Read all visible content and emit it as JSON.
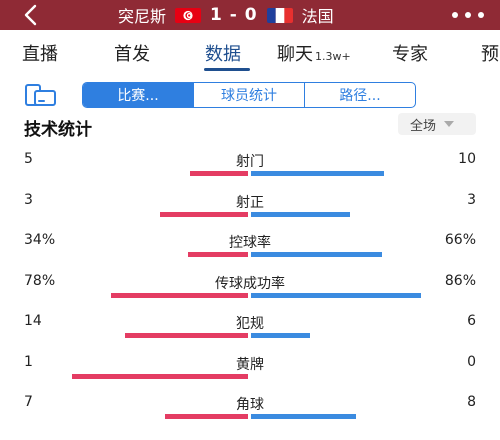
{
  "header": {
    "home_team": "突尼斯",
    "score": "1 - 0",
    "away_team": "法国",
    "home_flag": "tunisia-flag-icon",
    "away_flag": "france-flag-icon"
  },
  "tabs": [
    {
      "label": "直播"
    },
    {
      "label": "首发"
    },
    {
      "label": "数据"
    },
    {
      "label": "聊天",
      "badge": "1.3w+"
    },
    {
      "label": "专家"
    },
    {
      "label": "预"
    }
  ],
  "active_tab": "数据",
  "segments": [
    {
      "label": "比赛..."
    },
    {
      "label": "球员统计"
    },
    {
      "label": "路径..."
    }
  ],
  "section": {
    "title": "技术统计",
    "scope": "全场"
  },
  "colors": {
    "header_bg": "#8f2a35",
    "accent": "#2f7fe0",
    "home_bar": "#e43c63",
    "away_bar": "#3b8be0"
  },
  "stats": [
    {
      "label": "射门",
      "home": "5",
      "away": "10",
      "home_share": 0.33,
      "away_share": 0.67
    },
    {
      "label": "射正",
      "home": "3",
      "away": "3",
      "home_share": 0.5,
      "away_share": 0.5
    },
    {
      "label": "控球率",
      "home": "34%",
      "away": "66%",
      "home_share": 0.34,
      "away_share": 0.66
    },
    {
      "label": "传球成功率",
      "home": "78%",
      "away": "86%",
      "home_share": 0.78,
      "away_share": 0.86
    },
    {
      "label": "犯规",
      "home": "14",
      "away": "6",
      "home_share": 0.7,
      "away_share": 0.3
    },
    {
      "label": "黄牌",
      "home": "1",
      "away": "0",
      "home_share": 1.0,
      "away_share": 0.0
    },
    {
      "label": "角球",
      "home": "7",
      "away": "8",
      "home_share": 0.47,
      "away_share": 0.53
    }
  ]
}
